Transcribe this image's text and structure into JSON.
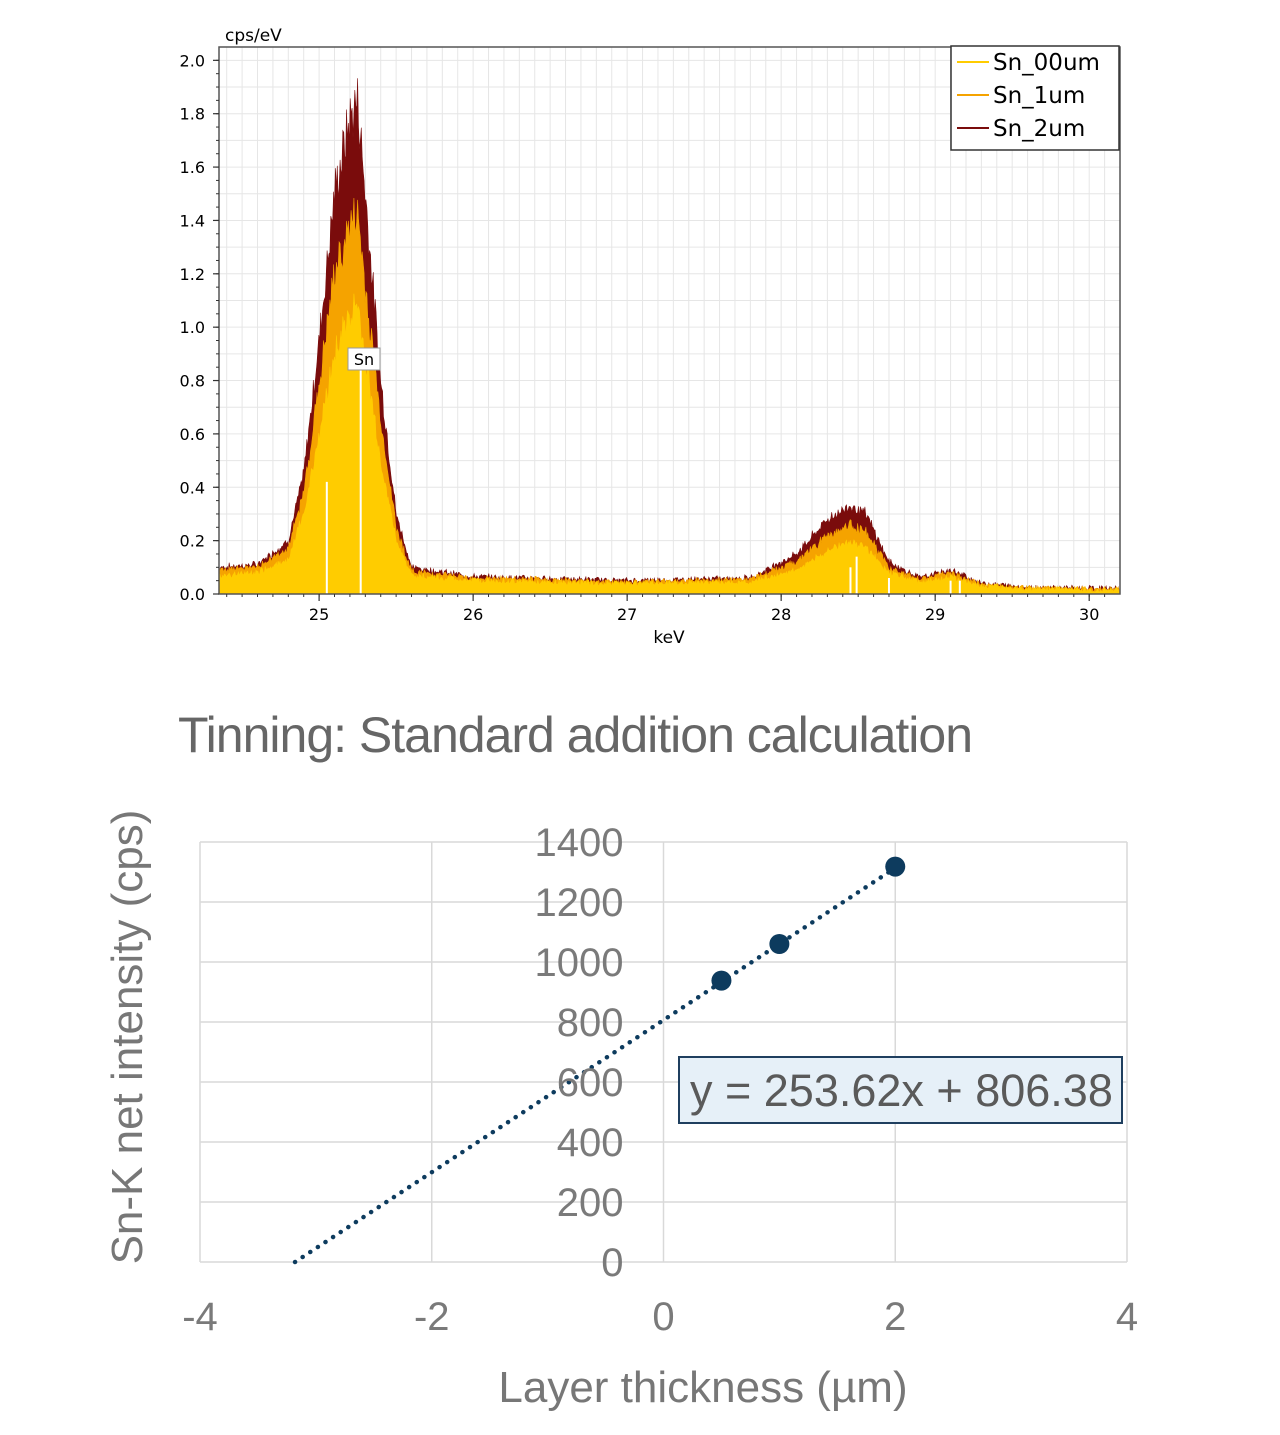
{
  "chart_data": [
    {
      "type": "area",
      "title": "",
      "xlabel": "keV",
      "ylabel": "cps/eV",
      "xlim": [
        24.35,
        30.2
      ],
      "ylim": [
        0,
        2.05
      ],
      "x_ticks": [
        "25",
        "26",
        "27",
        "28",
        "29",
        "30"
      ],
      "y_ticks": [
        "0.0",
        "0.2",
        "0.4",
        "0.6",
        "0.8",
        "1.0",
        "1.2",
        "1.4",
        "1.6",
        "1.8",
        "2.0"
      ],
      "legend_position": "top-right",
      "series": [
        {
          "name": "Sn_2um",
          "color": "#7a0c0c",
          "x": [
            24.35,
            24.6,
            24.8,
            24.9,
            25.0,
            25.1,
            25.2,
            25.25,
            25.3,
            25.4,
            25.5,
            25.6,
            26.0,
            27.0,
            27.8,
            28.1,
            28.3,
            28.45,
            28.55,
            28.7,
            28.9,
            29.1,
            29.3,
            29.6,
            30.2
          ],
          "y": [
            0.1,
            0.11,
            0.2,
            0.45,
            0.95,
            1.5,
            1.78,
            1.85,
            1.5,
            0.8,
            0.3,
            0.1,
            0.065,
            0.05,
            0.06,
            0.15,
            0.28,
            0.33,
            0.3,
            0.12,
            0.06,
            0.09,
            0.04,
            0.025,
            0.02
          ]
        },
        {
          "name": "Sn_1um",
          "color": "#f5a300",
          "x": [
            24.35,
            24.6,
            24.8,
            24.9,
            25.0,
            25.1,
            25.2,
            25.25,
            25.3,
            25.4,
            25.5,
            25.6,
            26.0,
            27.0,
            27.8,
            28.1,
            28.3,
            28.45,
            28.55,
            28.7,
            28.9,
            29.1,
            29.3,
            29.6,
            30.2
          ],
          "y": [
            0.09,
            0.1,
            0.17,
            0.38,
            0.78,
            1.2,
            1.38,
            1.42,
            1.15,
            0.65,
            0.25,
            0.085,
            0.06,
            0.045,
            0.055,
            0.12,
            0.22,
            0.26,
            0.23,
            0.1,
            0.055,
            0.08,
            0.035,
            0.022,
            0.018
          ]
        },
        {
          "name": "Sn_00um",
          "color": "#ffcc00",
          "x": [
            24.35,
            24.6,
            24.8,
            24.9,
            25.0,
            25.1,
            25.2,
            25.25,
            25.3,
            25.4,
            25.5,
            25.6,
            26.0,
            27.0,
            27.8,
            28.1,
            28.3,
            28.45,
            28.55,
            28.7,
            28.9,
            29.1,
            29.3,
            29.6,
            30.2
          ],
          "y": [
            0.07,
            0.08,
            0.13,
            0.3,
            0.6,
            0.9,
            1.05,
            1.08,
            0.88,
            0.5,
            0.2,
            0.07,
            0.05,
            0.04,
            0.045,
            0.09,
            0.16,
            0.2,
            0.17,
            0.08,
            0.045,
            0.065,
            0.03,
            0.02,
            0.015
          ]
        }
      ],
      "annotations": [
        {
          "text": "Sn",
          "x": 25.27,
          "y": 0.88
        }
      ]
    },
    {
      "type": "scatter",
      "title": "Tinning: Standard addition calculation",
      "xlabel": "Layer thickness (µm)",
      "ylabel": "Sn-K net intensity (cps)",
      "xlim": [
        -4,
        4
      ],
      "ylim": [
        0,
        1400
      ],
      "x_ticks": [
        "-4",
        "-2",
        "0",
        "2",
        "4"
      ],
      "y_ticks": [
        "0",
        "200",
        "400",
        "600",
        "800",
        "1000",
        "1200",
        "1400"
      ],
      "grid": true,
      "point_color": "#0d3b5e",
      "series": [
        {
          "x": [
            0.5,
            1,
            2
          ],
          "y": [
            938,
            1060,
            1318
          ]
        }
      ],
      "trendline": {
        "slope": 253.62,
        "intercept": 806.38,
        "x_range": [
          -3.18,
          2
        ],
        "style": "dotted",
        "equation": "y = 253.62x + 806.38"
      }
    }
  ]
}
